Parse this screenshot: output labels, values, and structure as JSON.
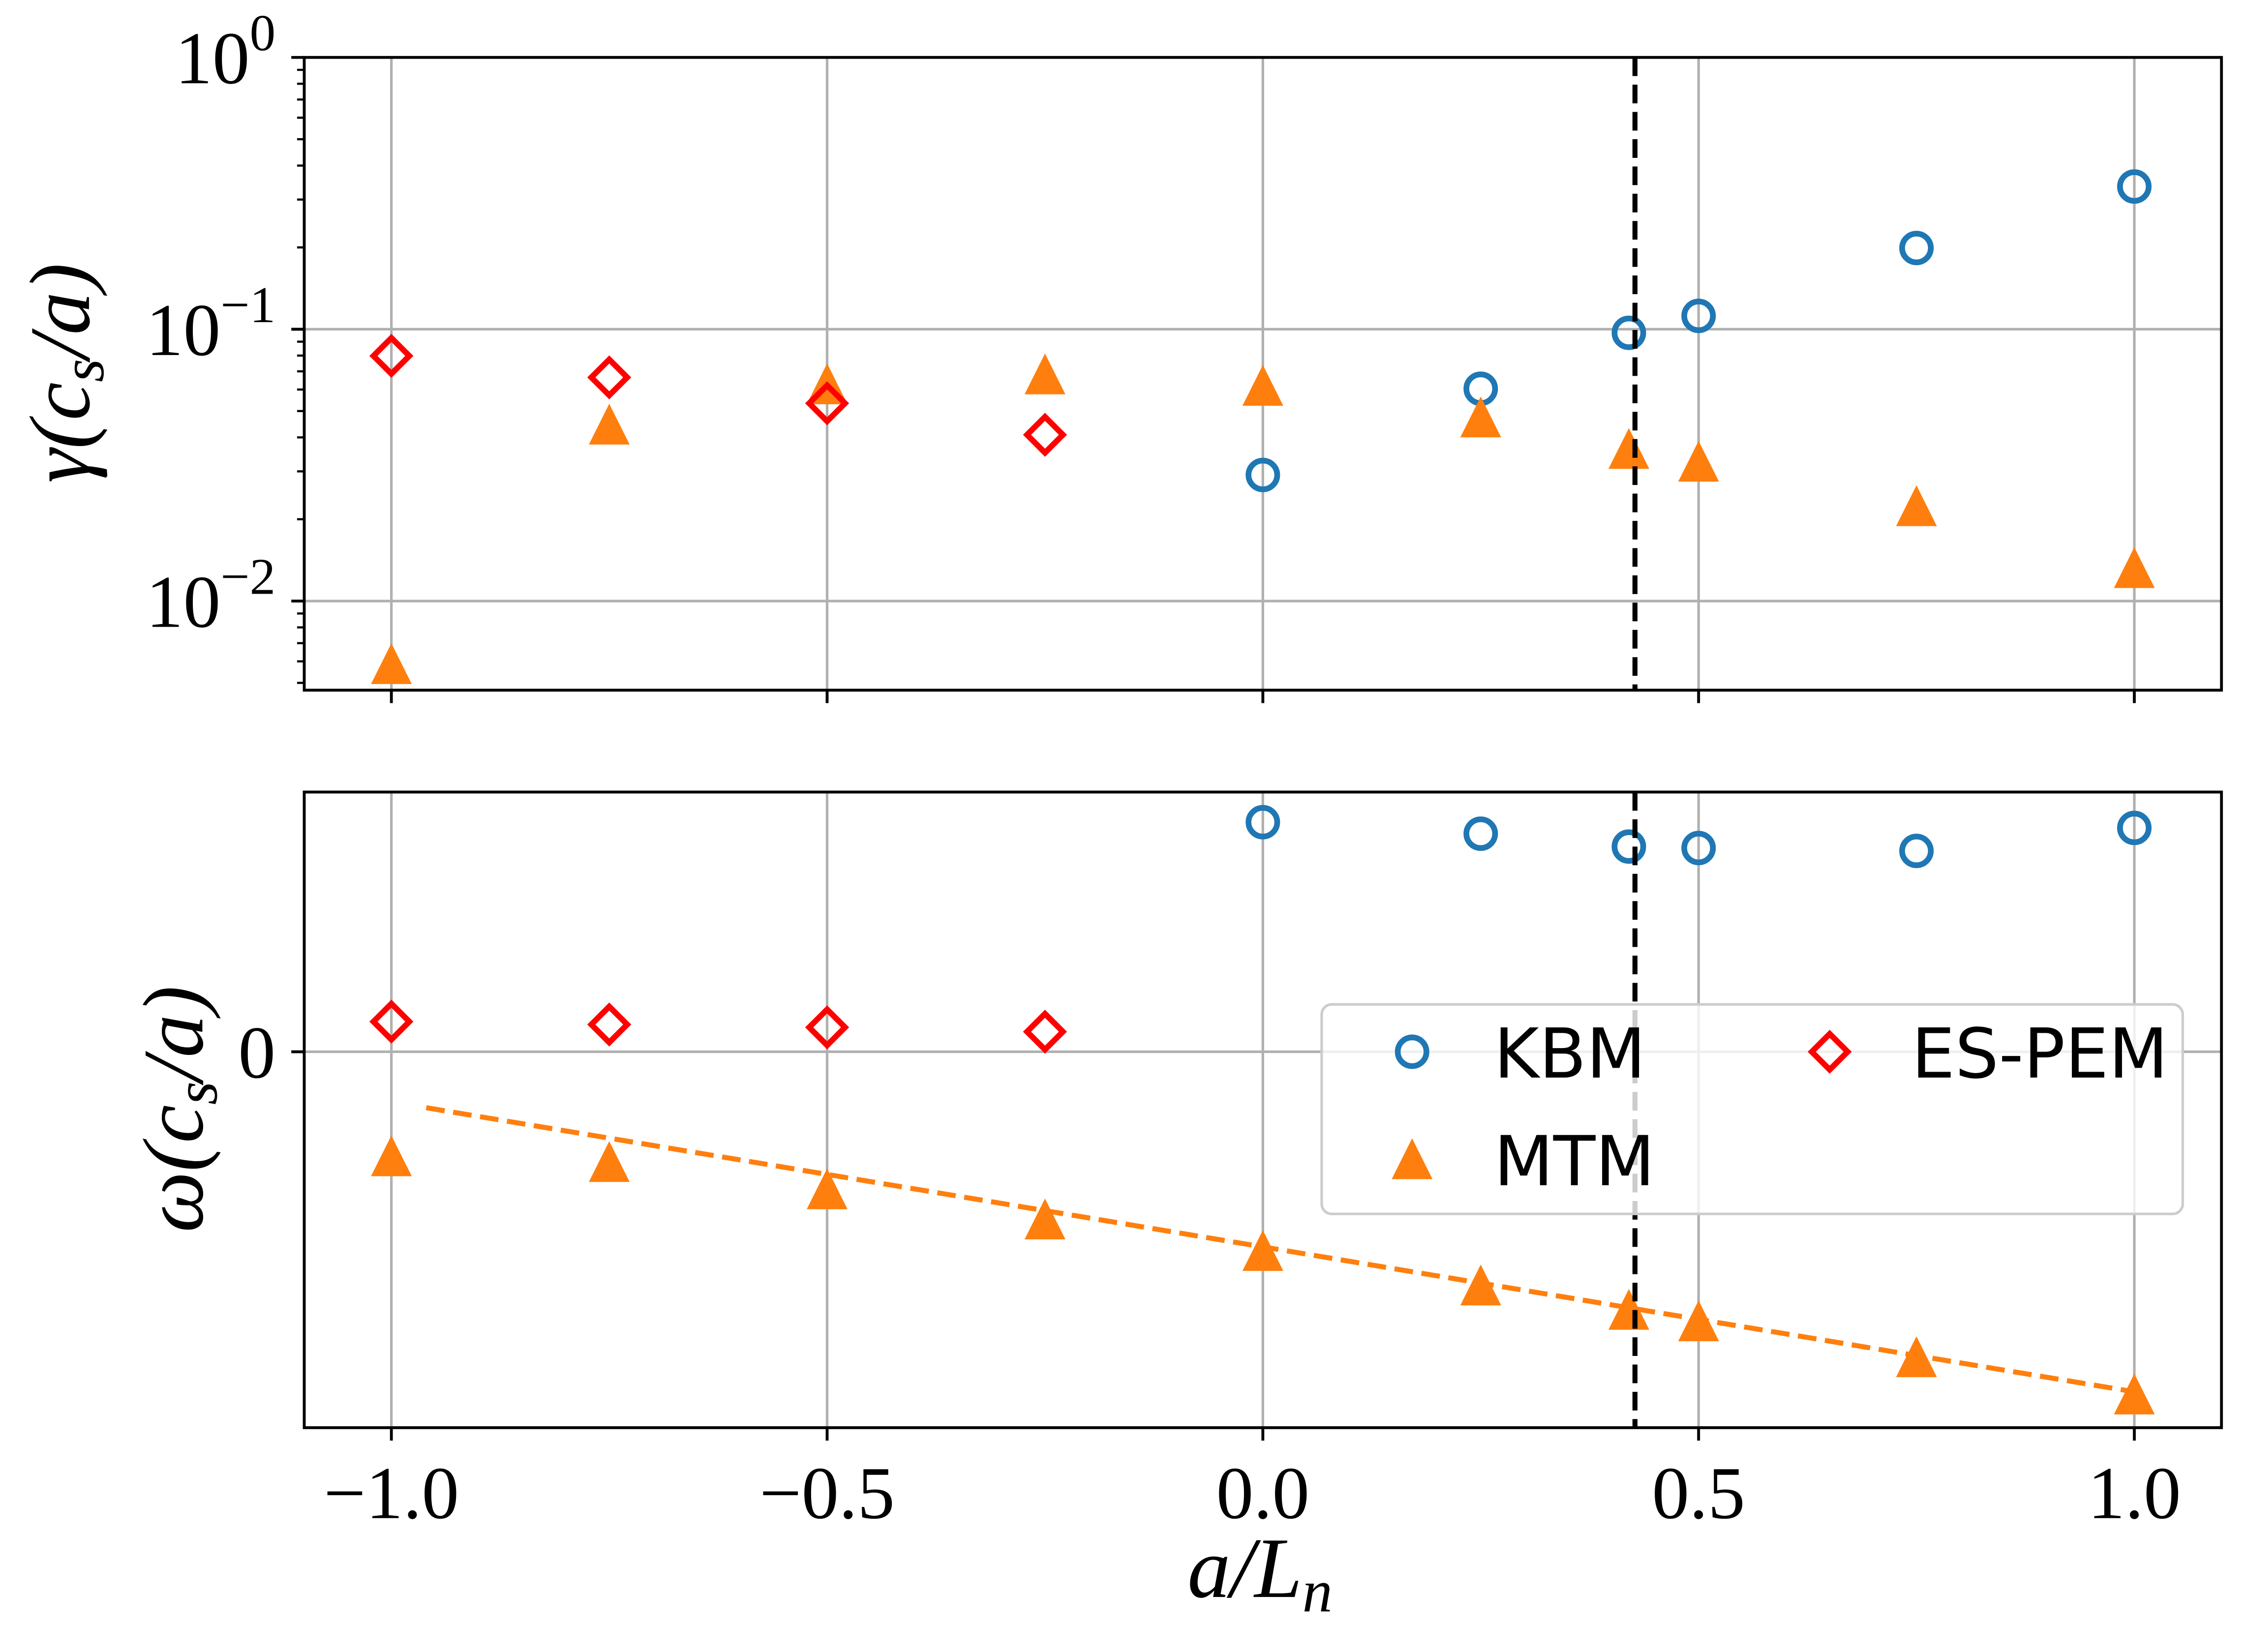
{
  "chart_data": {
    "type": "scatter",
    "xlabel": {
      "main": "a/L",
      "sub": "n"
    },
    "xlim": [
      -1.1,
      1.1
    ],
    "xticks": [
      -1.0,
      -0.5,
      0.0,
      0.5,
      1.0
    ],
    "xticklabels": [
      "−1.0",
      "−0.5",
      "0.0",
      "0.5",
      "1.0"
    ],
    "grid": true,
    "vline": {
      "x": 0.427,
      "color": "#000000"
    },
    "top": {
      "ylabel": {
        "main": "γ(c",
        "sub": "s",
        "post": "/a)"
      },
      "yscale": "log",
      "ylim": [
        0.0047,
        1.0
      ],
      "yticks": [
        1.0,
        0.1,
        0.01
      ],
      "yticklabels": [
        {
          "base": "10",
          "exp": "0"
        },
        {
          "base": "10",
          "exp": "−1"
        },
        {
          "base": "10",
          "exp": "−2"
        }
      ]
    },
    "bottom": {
      "ylabel": {
        "main": "ω(c",
        "sub": "s",
        "post": "/a)"
      },
      "yscale": "linear",
      "ylim": [
        -1.31,
        0.905
      ],
      "yticks": [
        0
      ],
      "yticklabels": [
        "0"
      ],
      "fit_line": {
        "x": [
          -0.96,
          1.0
        ],
        "y": [
          -0.195,
          -1.185
        ],
        "color": "#ff7f0e"
      }
    },
    "series": [
      {
        "name": "KBM",
        "marker": "circle",
        "color": "#1f77b4",
        "x": [
          0.0,
          0.25,
          0.42,
          0.5,
          0.75,
          1.0
        ],
        "gamma": [
          0.0291,
          0.0604,
          0.097,
          0.112,
          0.199,
          0.335
        ],
        "omega": [
          0.8,
          0.76,
          0.715,
          0.71,
          0.7,
          0.78
        ]
      },
      {
        "name": "MTM",
        "marker": "triangle-up",
        "color": "#ff7f0e",
        "x": [
          -1.0,
          -0.75,
          -0.5,
          -0.25,
          0.0,
          0.25,
          0.42,
          0.5,
          0.75,
          1.0
        ],
        "gamma": [
          0.00585,
          0.0445,
          0.0626,
          0.0681,
          0.0618,
          0.0473,
          0.0362,
          0.0325,
          0.0223,
          0.0132
        ],
        "omega": [
          -0.365,
          -0.385,
          -0.48,
          -0.585,
          -0.695,
          -0.815,
          -0.9,
          -0.94,
          -1.065,
          -1.195
        ]
      },
      {
        "name": "ES-PEM",
        "marker": "diamond",
        "color": "#ff0000",
        "x": [
          -1.0,
          -0.75,
          -0.5,
          -0.25
        ],
        "gamma": [
          0.0798,
          0.0665,
          0.0534,
          0.0409
        ],
        "omega": [
          0.105,
          0.095,
          0.085,
          0.07
        ]
      }
    ],
    "legend": {
      "position": "center-right",
      "ncol": 2
    }
  }
}
